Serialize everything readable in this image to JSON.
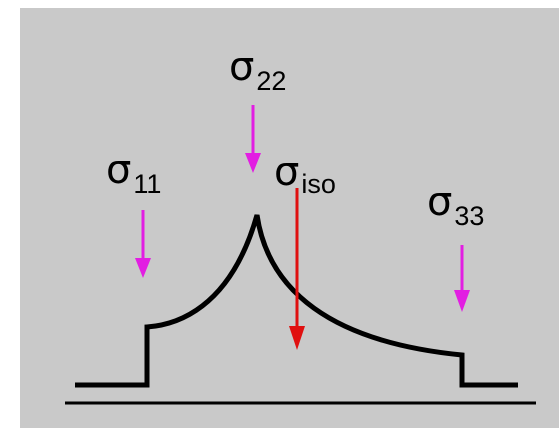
{
  "labels": [
    {
      "symbol": "σ",
      "subscript": "11"
    },
    {
      "symbol": "σ",
      "subscript": "22"
    },
    {
      "symbol": "σ",
      "subscript": "iso"
    },
    {
      "symbol": "σ",
      "subscript": "33"
    }
  ]
}
